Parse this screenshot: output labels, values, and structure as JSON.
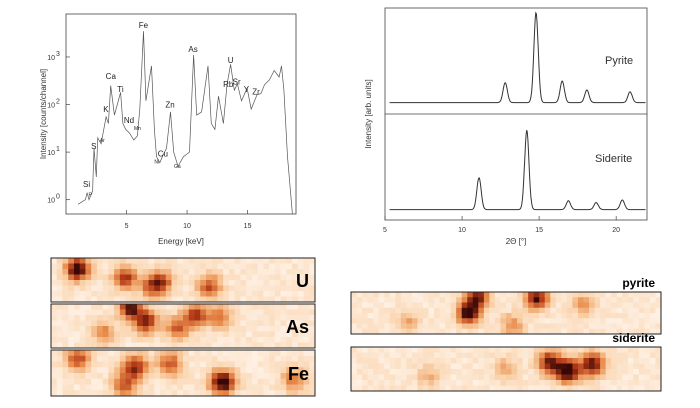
{
  "chart_data": [
    {
      "type": "line",
      "xlabel": "Energy [keV]",
      "ylabel": "Intensity [counts/channel]",
      "yscale": "log",
      "xlim": [
        0,
        19
      ],
      "ylim": [
        0.5,
        8000
      ],
      "x_ticks": [
        "5",
        "10",
        "15"
      ],
      "y_ticks": [
        "10",
        "10",
        "10",
        "10"
      ],
      "y_tick_exponents": [
        "0",
        "1",
        "2",
        "3"
      ],
      "peaks": [
        {
          "label": "Si",
          "x": 1.7,
          "y": 1.6
        },
        {
          "label": "P",
          "x": 2.0,
          "y": 1.0,
          "small": true
        },
        {
          "label": "S",
          "x": 2.3,
          "y": 10
        },
        {
          "label": "Ar",
          "x": 3.0,
          "y": 14,
          "small": true
        },
        {
          "label": "K",
          "x": 3.3,
          "y": 60
        },
        {
          "label": "Ca",
          "x": 3.7,
          "y": 300
        },
        {
          "label": "Ti",
          "x": 4.5,
          "y": 160
        },
        {
          "label": "Nd",
          "x": 5.2,
          "y": 35
        },
        {
          "label": "Mn",
          "x": 5.9,
          "y": 25,
          "small": true
        },
        {
          "label": "Fe",
          "x": 6.4,
          "y": 3500
        },
        {
          "label": "Ni",
          "x": 7.5,
          "y": 5,
          "small": true
        },
        {
          "label": "Cu",
          "x": 8.0,
          "y": 7
        },
        {
          "label": "Zn",
          "x": 8.6,
          "y": 75
        },
        {
          "label": "Ga",
          "x": 9.2,
          "y": 4,
          "small": true
        },
        {
          "label": "As",
          "x": 10.5,
          "y": 1100
        },
        {
          "label": "Rb",
          "x": 13.4,
          "y": 200
        },
        {
          "label": "U",
          "x": 13.6,
          "y": 650
        },
        {
          "label": "Sr",
          "x": 14.1,
          "y": 230
        },
        {
          "label": "Y",
          "x": 14.9,
          "y": 160
        },
        {
          "label": "Zr",
          "x": 15.7,
          "y": 140
        }
      ],
      "spectrum": {
        "x": [
          1.0,
          1.6,
          1.74,
          1.9,
          2.2,
          2.31,
          2.5,
          2.62,
          2.9,
          3.31,
          3.5,
          3.69,
          4.0,
          4.51,
          4.7,
          4.93,
          5.25,
          5.6,
          5.9,
          6.1,
          6.4,
          6.6,
          7.06,
          7.3,
          7.48,
          7.75,
          8.05,
          8.3,
          8.63,
          8.9,
          9.25,
          9.7,
          10.2,
          10.54,
          10.8,
          11.2,
          11.73,
          12.0,
          12.3,
          12.6,
          13.0,
          13.3,
          13.6,
          13.9,
          14.16,
          14.5,
          14.96,
          15.3,
          15.78,
          16.1,
          16.4,
          16.8,
          17.2,
          17.6,
          17.8,
          18.0,
          18.3,
          18.7
        ],
        "y": [
          0.8,
          1.0,
          1.4,
          1.0,
          1.5,
          12,
          3,
          20,
          15,
          55,
          40,
          250,
          60,
          180,
          40,
          30,
          25,
          18,
          22,
          80,
          3500,
          120,
          650,
          30,
          8,
          6,
          9,
          12,
          70,
          10,
          5,
          8,
          10,
          1100,
          60,
          70,
          650,
          40,
          30,
          150,
          40,
          260,
          700,
          200,
          270,
          120,
          220,
          80,
          160,
          170,
          260,
          330,
          520,
          380,
          650,
          200,
          8,
          0.5
        ]
      }
    },
    {
      "type": "line",
      "xlabel": "2Θ [°]",
      "ylabel": "Intensity [arb. units]",
      "xlim": [
        5,
        22
      ],
      "x_ticks": [
        "5",
        "10",
        "15",
        "20"
      ],
      "series": [
        {
          "name": "Pyrite",
          "baseline": 0.06,
          "peaks": [
            {
              "x": 12.8,
              "h": 0.22
            },
            {
              "x": 14.8,
              "h": 1.0
            },
            {
              "x": 16.5,
              "h": 0.24
            },
            {
              "x": 18.1,
              "h": 0.14
            },
            {
              "x": 20.9,
              "h": 0.12
            }
          ]
        },
        {
          "name": "Siderite",
          "baseline": 0.05,
          "peaks": [
            {
              "x": 11.1,
              "h": 0.36
            },
            {
              "x": 14.2,
              "h": 0.9
            },
            {
              "x": 16.9,
              "h": 0.1
            },
            {
              "x": 18.7,
              "h": 0.08
            },
            {
              "x": 20.4,
              "h": 0.11
            }
          ]
        }
      ]
    },
    {
      "type": "heatmap",
      "maps": [
        {
          "label": "U",
          "hot": [
            [
              0.1,
              0.25,
              0.95
            ],
            [
              0.28,
              0.45,
              0.7
            ],
            [
              0.42,
              0.55,
              0.55
            ],
            [
              0.6,
              0.65,
              0.6
            ],
            [
              0.38,
              0.65,
              0.45
            ]
          ]
        },
        {
          "label": "As",
          "hot": [
            [
              0.3,
              0.1,
              0.8
            ],
            [
              0.36,
              0.4,
              0.75
            ],
            [
              0.55,
              0.25,
              0.7
            ],
            [
              0.48,
              0.55,
              0.55
            ],
            [
              0.2,
              0.65,
              0.4
            ],
            [
              0.64,
              0.3,
              0.45
            ]
          ]
        },
        {
          "label": "Fe",
          "hot": [
            [
              0.65,
              0.7,
              1.0
            ],
            [
              0.1,
              0.2,
              0.6
            ],
            [
              0.32,
              0.35,
              0.7
            ],
            [
              0.45,
              0.3,
              0.55
            ],
            [
              0.28,
              0.75,
              0.55
            ],
            [
              0.92,
              0.65,
              0.45
            ]
          ]
        }
      ]
    },
    {
      "type": "heatmap",
      "maps": [
        {
          "label": "pyrite",
          "hot": [
            [
              0.38,
              0.5,
              1.0
            ],
            [
              0.41,
              0.1,
              0.75
            ],
            [
              0.6,
              0.15,
              0.85
            ],
            [
              0.52,
              0.8,
              0.4
            ],
            [
              0.75,
              0.3,
              0.35
            ],
            [
              0.18,
              0.7,
              0.3
            ]
          ]
        },
        {
          "label": "siderite",
          "hot": [
            [
              0.7,
              0.55,
              1.0
            ],
            [
              0.64,
              0.35,
              0.8
            ],
            [
              0.78,
              0.4,
              0.85
            ],
            [
              0.5,
              0.5,
              0.3
            ],
            [
              0.25,
              0.65,
              0.25
            ]
          ]
        }
      ]
    }
  ]
}
